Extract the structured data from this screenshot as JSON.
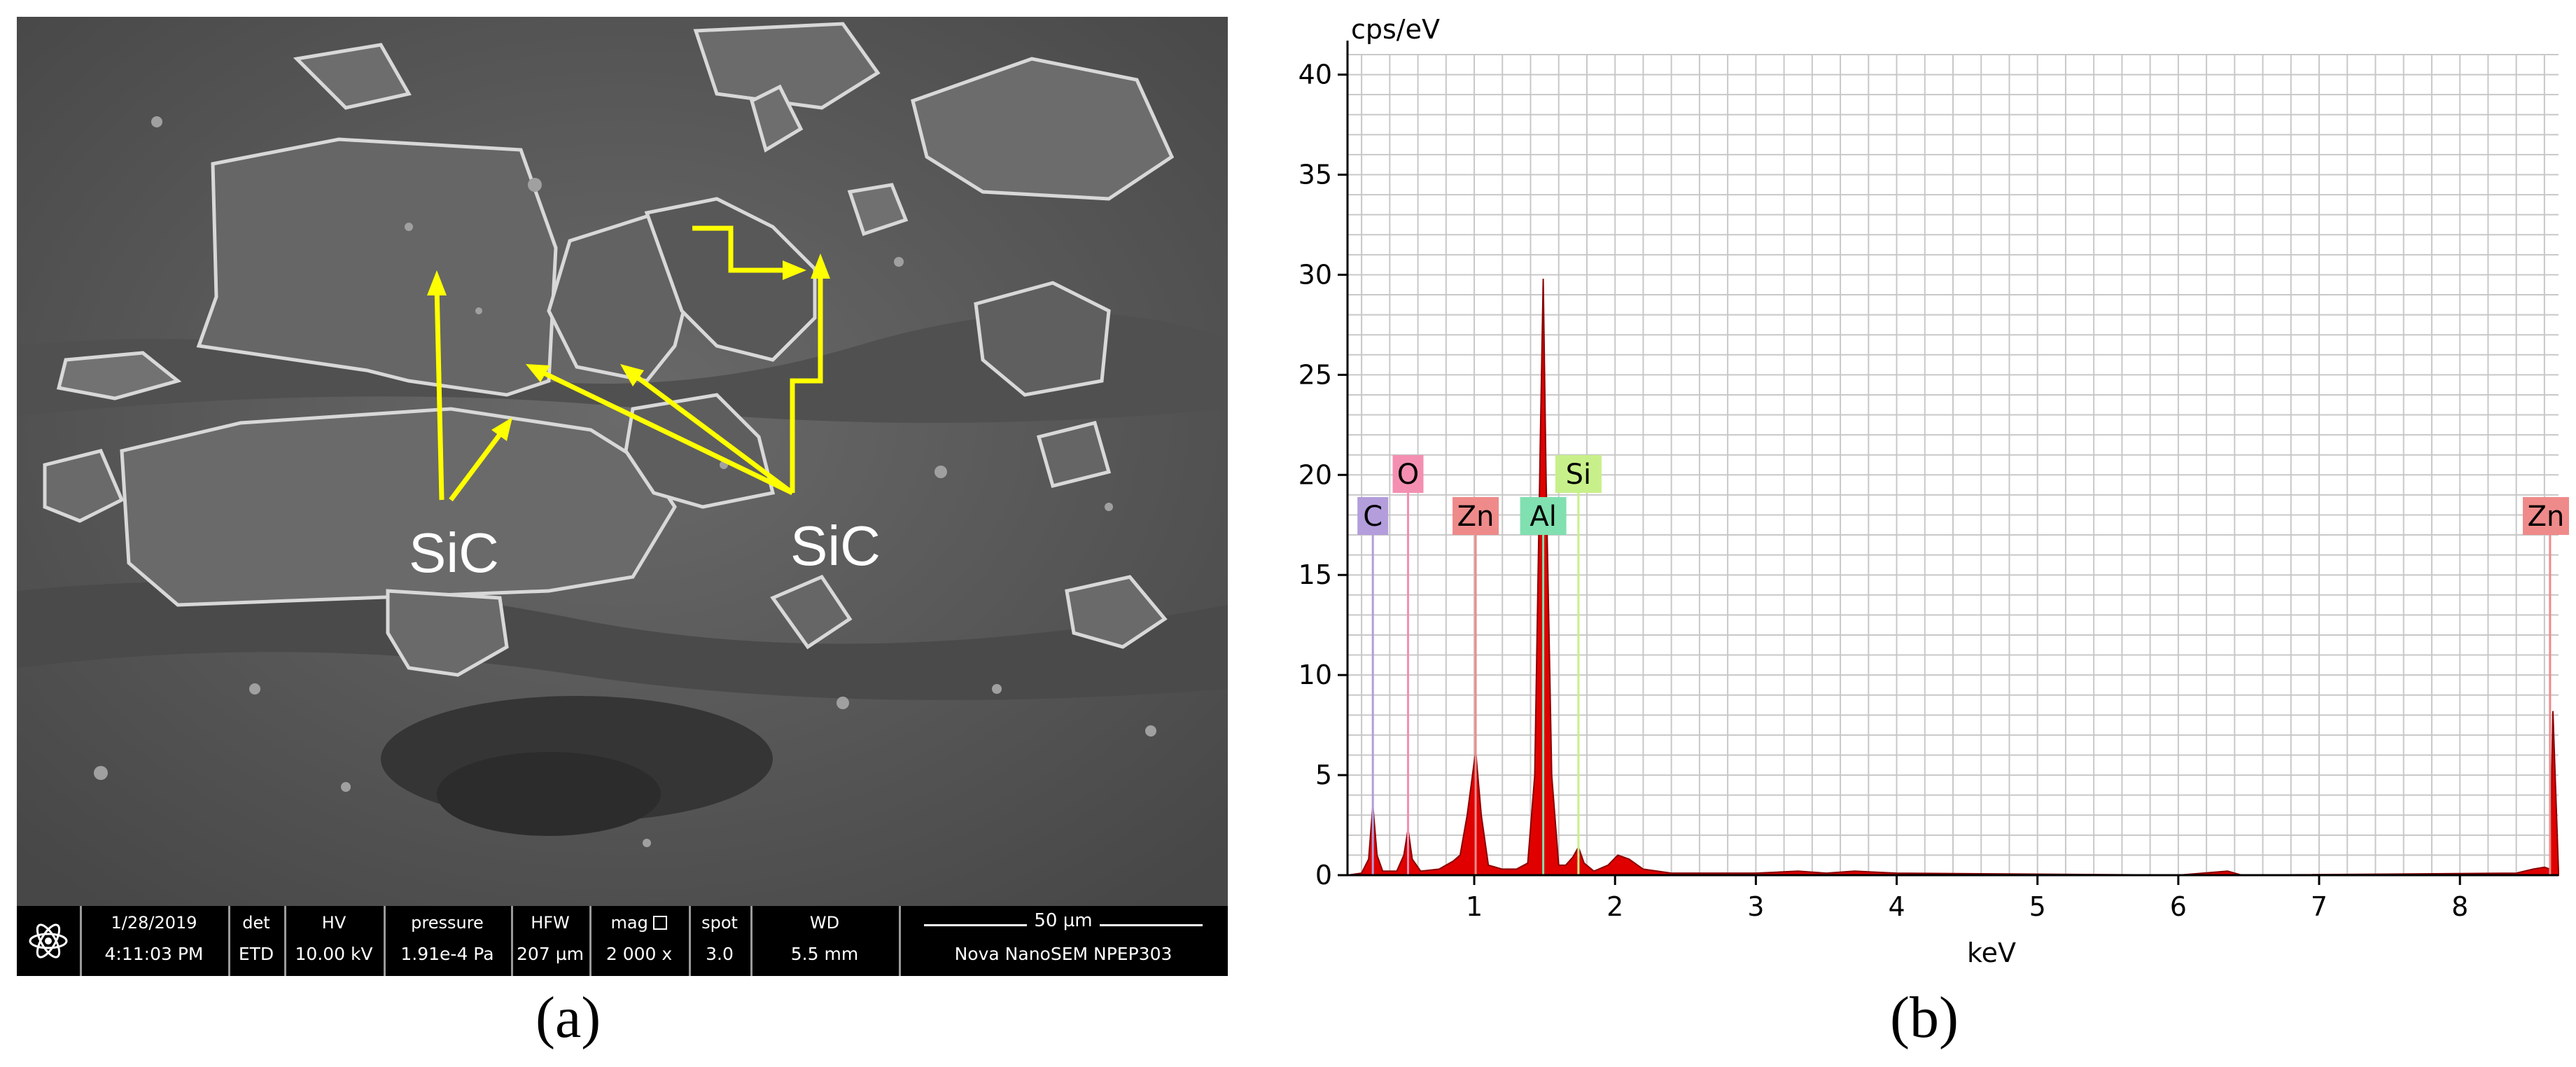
{
  "panel_a": {
    "caption": "(a)",
    "annotations": [
      "SiC",
      "SiC"
    ],
    "databar": {
      "date": "1/28/2019",
      "time": "4:11:03 PM",
      "det_header": "det",
      "det_value": "ETD",
      "hv_header": "HV",
      "hv_value": "10.00 kV",
      "pressure_header": "pressure",
      "pressure_value": "1.91e-4 Pa",
      "hfw_header": "HFW",
      "hfw_value": "207 µm",
      "mag_header": "mag",
      "mag_value": "2 000 x",
      "spot_header": "spot",
      "spot_value": "3.0",
      "wd_header": "WD",
      "wd_value": "5.5 mm",
      "scale_label": "50 µm",
      "instrument": "Nova NanoSEM  NPEP303"
    },
    "colors": {
      "arrow": "#ffff00",
      "sic_label": "#ffffff",
      "background": "#5a5a5a"
    }
  },
  "panel_b": {
    "caption": "(b)"
  },
  "chart_data": {
    "type": "area",
    "title": "",
    "xlabel": "keV",
    "ylabel": "cps/eV",
    "xlim": [
      0.1,
      8.7
    ],
    "ylim": [
      0,
      41
    ],
    "xticks": [
      "1",
      "2",
      "3",
      "4",
      "5",
      "6",
      "7",
      "8"
    ],
    "yticks": [
      "0",
      "5",
      "10",
      "15",
      "20",
      "25",
      "30",
      "35",
      "40"
    ],
    "grid": true,
    "series": [
      {
        "fill_color": "#e00000",
        "points": [
          [
            0.1,
            0.0
          ],
          [
            0.2,
            0.1
          ],
          [
            0.25,
            0.8
          ],
          [
            0.28,
            3.5
          ],
          [
            0.31,
            1.0
          ],
          [
            0.35,
            0.2
          ],
          [
            0.45,
            0.2
          ],
          [
            0.5,
            1.0
          ],
          [
            0.53,
            2.3
          ],
          [
            0.56,
            0.8
          ],
          [
            0.62,
            0.2
          ],
          [
            0.75,
            0.3
          ],
          [
            0.85,
            0.7
          ],
          [
            0.9,
            1.0
          ],
          [
            0.95,
            3.0
          ],
          [
            1.01,
            6.2
          ],
          [
            1.05,
            3.0
          ],
          [
            1.1,
            0.5
          ],
          [
            1.2,
            0.3
          ],
          [
            1.3,
            0.3
          ],
          [
            1.38,
            0.6
          ],
          [
            1.43,
            5.0
          ],
          [
            1.47,
            22.0
          ],
          [
            1.49,
            29.8
          ],
          [
            1.51,
            20.0
          ],
          [
            1.55,
            5.0
          ],
          [
            1.6,
            0.5
          ],
          [
            1.65,
            0.5
          ],
          [
            1.7,
            0.9
          ],
          [
            1.74,
            1.4
          ],
          [
            1.78,
            0.6
          ],
          [
            1.85,
            0.2
          ],
          [
            1.95,
            0.5
          ],
          [
            2.02,
            1.0
          ],
          [
            2.1,
            0.8
          ],
          [
            2.2,
            0.3
          ],
          [
            2.4,
            0.1
          ],
          [
            2.6,
            0.1
          ],
          [
            3.0,
            0.1
          ],
          [
            3.3,
            0.2
          ],
          [
            3.5,
            0.1
          ],
          [
            3.7,
            0.2
          ],
          [
            4.0,
            0.1
          ],
          [
            6.0,
            0.0
          ],
          [
            6.35,
            0.2
          ],
          [
            6.45,
            0.0
          ],
          [
            8.4,
            0.1
          ],
          [
            8.52,
            0.3
          ],
          [
            8.6,
            0.4
          ],
          [
            8.64,
            0.3
          ],
          [
            8.66,
            8.2
          ],
          [
            8.7,
            0.2
          ]
        ]
      }
    ],
    "annotations": [
      {
        "label": "C",
        "x": 0.28,
        "color": "#b39ddb"
      },
      {
        "label": "O",
        "x": 0.53,
        "color": "#f48fb1"
      },
      {
        "label": "Zn",
        "x": 1.01,
        "color": "#ef8a8a"
      },
      {
        "label": "Al",
        "x": 1.49,
        "color": "#80e0b0"
      },
      {
        "label": "Si",
        "x": 1.74,
        "color": "#c8f08a"
      },
      {
        "label": "Zn",
        "x": 8.64,
        "color": "#ef8a8a"
      }
    ]
  }
}
